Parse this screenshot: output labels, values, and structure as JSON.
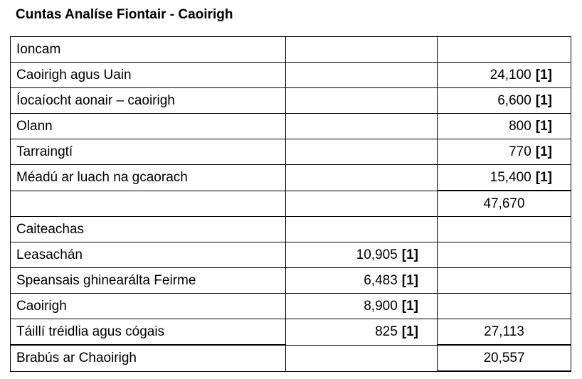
{
  "title": "Cuntas Analíse Fiontair - Caoirigh",
  "rows": [
    {
      "label": "Ioncam",
      "mid": "",
      "mid_mark": "",
      "right": "",
      "right_mark": ""
    },
    {
      "label": "Caoirigh agus Uain",
      "mid": "",
      "mid_mark": "",
      "right": "24,100",
      "right_mark": "[1]"
    },
    {
      "label": "Íocaíocht aonair – caoirigh",
      "mid": "",
      "mid_mark": "",
      "right": "6,600",
      "right_mark": "[1]"
    },
    {
      "label": "Olann",
      "mid": "",
      "mid_mark": "",
      "right": "800",
      "right_mark": "[1]"
    },
    {
      "label": "Tarraingtí",
      "mid": "",
      "mid_mark": "",
      "right": "770",
      "right_mark": "[1]"
    },
    {
      "label": "Méadú ar luach na gcaorach",
      "mid": "",
      "mid_mark": "",
      "right": "15,400",
      "right_mark": "[1]"
    },
    {
      "label": "",
      "mid": "",
      "mid_mark": "",
      "right": "47,670",
      "right_mark": ""
    },
    {
      "label": "Caiteachas",
      "mid": "",
      "mid_mark": "",
      "right": "",
      "right_mark": ""
    },
    {
      "label": "Leasachán",
      "mid": "10,905",
      "mid_mark": "[1]",
      "right": "",
      "right_mark": ""
    },
    {
      "label": "Speansais ghinearálta Feirme",
      "mid": "6,483",
      "mid_mark": "[1]",
      "right": "",
      "right_mark": ""
    },
    {
      "label": "Caoirigh",
      "mid": "8,900",
      "mid_mark": "[1]",
      "right": "",
      "right_mark": ""
    },
    {
      "label": "Táillí tréidlia agus cógais",
      "mid": "825",
      "mid_mark": "[1]",
      "right": "27,113",
      "right_mark": ""
    },
    {
      "label": "Brabús ar Chaoirigh",
      "mid": "",
      "mid_mark": "",
      "right": "20,557",
      "right_mark": ""
    }
  ]
}
